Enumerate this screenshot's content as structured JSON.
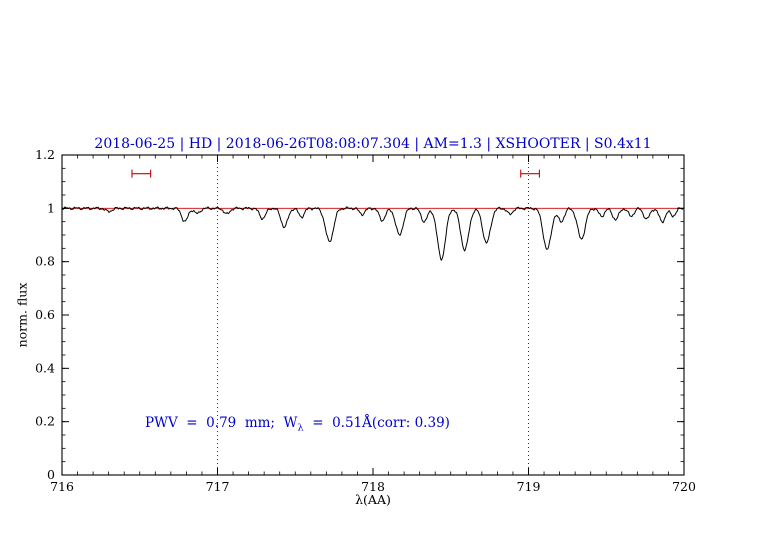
{
  "figure": {
    "title": "2018-06-25 | HD | 2018-06-26T08:08:07.304 | AM=1.3 | XSHOOTER | S0.4x11",
    "title_color": "#0000cd",
    "annotation": {
      "prefix": "PWV  =  0.79  mm;  W",
      "subscript": "λ",
      "suffix": "  =  0.51Å(corr: 0.39)",
      "color": "#0000cd"
    }
  },
  "chart_data": {
    "type": "line",
    "title": "2018-06-25 | HD | 2018-06-26T08:08:07.304 | AM=1.3 | XSHOOTER | S0.4x11",
    "xlabel": "λ(AA)",
    "ylabel": "norm. flux",
    "xlim": [
      716,
      720
    ],
    "ylim": [
      0,
      1.2
    ],
    "grid": "off",
    "x_ticks": {
      "values": [
        716,
        717,
        718,
        719,
        720
      ],
      "labels": [
        "716",
        "717",
        "718",
        "719",
        "720"
      ],
      "minor_step": 0.1
    },
    "y_ticks": {
      "values": [
        0,
        0.2,
        0.4,
        0.6,
        0.8,
        1,
        1.2
      ],
      "labels": [
        "0",
        "0.2",
        "0.4",
        "0.6",
        "0.8",
        "1",
        "1.2"
      ],
      "minor_step": 0.05
    },
    "gridlines": {
      "style": "dotted-vertical",
      "x_values": [
        717,
        719
      ],
      "color": "#000000"
    },
    "continuum": {
      "y": 1.0,
      "color": "#cd0000"
    },
    "series": [
      {
        "name": "telluric-spectrum",
        "color": "#000000",
        "continuum_level": 1.0,
        "absorption_lines": [
          {
            "center": 716.3,
            "depth": 0.012,
            "sigma": 0.02
          },
          {
            "center": 716.79,
            "depth": 0.05,
            "sigma": 0.02
          },
          {
            "center": 716.87,
            "depth": 0.02,
            "sigma": 0.018
          },
          {
            "center": 717.06,
            "depth": 0.022,
            "sigma": 0.018
          },
          {
            "center": 717.29,
            "depth": 0.038,
            "sigma": 0.02
          },
          {
            "center": 717.43,
            "depth": 0.07,
            "sigma": 0.022
          },
          {
            "center": 717.54,
            "depth": 0.032,
            "sigma": 0.018
          },
          {
            "center": 717.72,
            "depth": 0.125,
            "sigma": 0.026
          },
          {
            "center": 717.93,
            "depth": 0.022,
            "sigma": 0.018
          },
          {
            "center": 718.06,
            "depth": 0.045,
            "sigma": 0.02
          },
          {
            "center": 718.17,
            "depth": 0.1,
            "sigma": 0.024
          },
          {
            "center": 718.33,
            "depth": 0.05,
            "sigma": 0.02
          },
          {
            "center": 718.44,
            "depth": 0.19,
            "sigma": 0.026
          },
          {
            "center": 718.59,
            "depth": 0.155,
            "sigma": 0.026
          },
          {
            "center": 718.73,
            "depth": 0.13,
            "sigma": 0.025
          },
          {
            "center": 718.88,
            "depth": 0.022,
            "sigma": 0.018
          },
          {
            "center": 719.12,
            "depth": 0.155,
            "sigma": 0.026
          },
          {
            "center": 719.21,
            "depth": 0.05,
            "sigma": 0.02
          },
          {
            "center": 719.34,
            "depth": 0.115,
            "sigma": 0.025
          },
          {
            "center": 719.47,
            "depth": 0.03,
            "sigma": 0.018
          },
          {
            "center": 719.56,
            "depth": 0.042,
            "sigma": 0.02
          },
          {
            "center": 719.66,
            "depth": 0.03,
            "sigma": 0.018
          },
          {
            "center": 719.76,
            "depth": 0.04,
            "sigma": 0.02
          },
          {
            "center": 719.86,
            "depth": 0.05,
            "sigma": 0.02
          },
          {
            "center": 719.93,
            "depth": 0.028,
            "sigma": 0.018
          }
        ]
      }
    ],
    "markers": [
      {
        "type": "h-errorbar",
        "x_min": 716.45,
        "x_max": 716.57,
        "y": 1.13,
        "color": "#cd0000"
      },
      {
        "type": "h-errorbar",
        "x_min": 718.95,
        "x_max": 719.07,
        "y": 1.13,
        "color": "#cd0000"
      }
    ],
    "values": {
      "pwv_mm": 0.79,
      "w_lambda_angstrom": 0.51,
      "corr": 0.39
    },
    "legend": "none"
  }
}
